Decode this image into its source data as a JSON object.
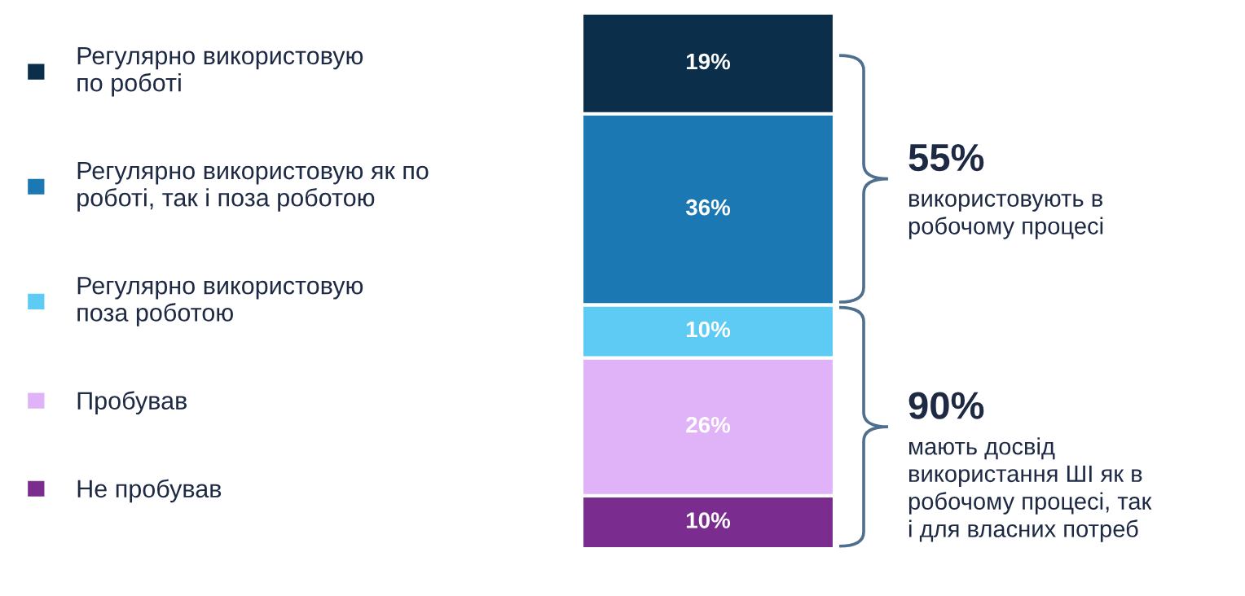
{
  "chart_data": {
    "type": "bar",
    "stacked": true,
    "categories": [
      null
    ],
    "tick_labels": false,
    "grid": false,
    "legend": "left",
    "series": [
      {
        "name": "Не пробував",
        "color": "#7b2d8f",
        "values": [
          10
        ],
        "value_labels": [
          "10%"
        ]
      },
      {
        "name": "Пробував",
        "color": "#e0b3f9",
        "values": [
          26
        ],
        "value_labels": [
          "26%"
        ]
      },
      {
        "name": "Регулярно використовую\nпоза роботою",
        "color": "#5ecbf5",
        "values": [
          10
        ],
        "value_labels": [
          "10%"
        ]
      },
      {
        "name": "Регулярно використовую як по\nроботі, так і поза роботою",
        "color": "#1b78b2",
        "values": [
          36
        ],
        "value_labels": [
          "36%"
        ]
      },
      {
        "name": "Регулярно використовую\nпо роботі",
        "color": "#0b2f4a",
        "values": [
          19
        ],
        "value_labels": [
          "19%"
        ]
      }
    ],
    "annotations": [
      "55%",
      "використовують в\nробочому процесі",
      "90%",
      "мають досвід\nвикористання ШІ як в\nробочому процесі, так\nі для власних потреб"
    ]
  }
}
